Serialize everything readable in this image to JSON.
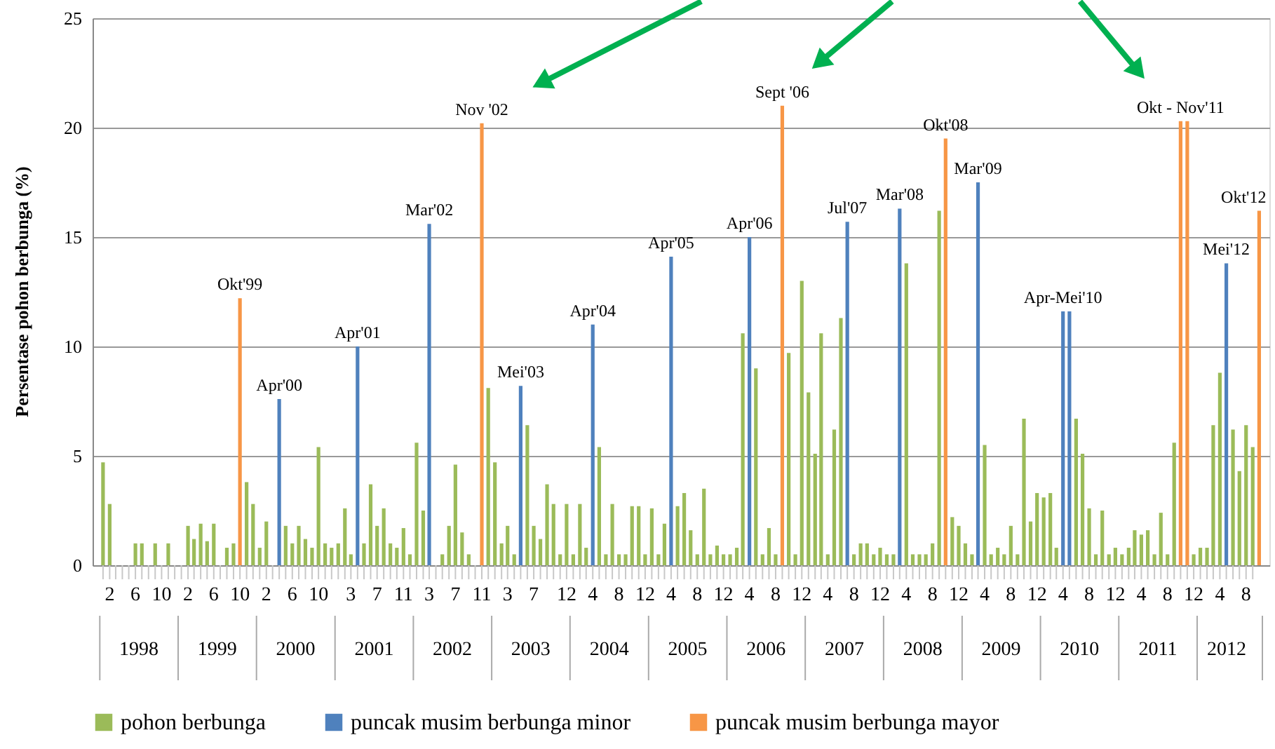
{
  "chart_data": {
    "type": "bar",
    "ylabel": "Persentase pohon berbunga (%)",
    "ylim": [
      0,
      25
    ],
    "yticks": [
      0,
      5,
      10,
      15,
      20,
      25
    ],
    "grid": "y",
    "legend": "bottom",
    "xlim": [
      "1997-12-16",
      "2012-10-16"
    ],
    "xticks": [
      {
        "value": "1998-02",
        "label": "2"
      },
      {
        "value": "1998-06",
        "label": "6"
      },
      {
        "value": "1998-10",
        "label": "10"
      },
      {
        "value": "1999-02",
        "label": "2"
      },
      {
        "value": "1999-06",
        "label": "6"
      },
      {
        "value": "1999-10",
        "label": "10"
      },
      {
        "value": "2000-02",
        "label": "2"
      },
      {
        "value": "2000-06",
        "label": "6"
      },
      {
        "value": "2000-10",
        "label": "10"
      },
      {
        "value": "2001-03",
        "label": "3"
      },
      {
        "value": "2001-07",
        "label": "7"
      },
      {
        "value": "2001-11",
        "label": "11"
      },
      {
        "value": "2002-03",
        "label": "3"
      },
      {
        "value": "2002-07",
        "label": "7"
      },
      {
        "value": "2002-11",
        "label": "11"
      },
      {
        "value": "2003-03",
        "label": "3"
      },
      {
        "value": "2003-07",
        "label": "7"
      },
      {
        "value": "2003-12",
        "label": "12"
      },
      {
        "value": "2004-04",
        "label": "4"
      },
      {
        "value": "2004-08",
        "label": "8"
      },
      {
        "value": "2004-12",
        "label": "12"
      },
      {
        "value": "2005-04",
        "label": "4"
      },
      {
        "value": "2005-08",
        "label": "8"
      },
      {
        "value": "2005-12",
        "label": "12"
      },
      {
        "value": "2006-04",
        "label": "4"
      },
      {
        "value": "2006-08",
        "label": "8"
      },
      {
        "value": "2006-12",
        "label": "12"
      },
      {
        "value": "2007-04",
        "label": "4"
      },
      {
        "value": "2007-08",
        "label": "8"
      },
      {
        "value": "2007-12",
        "label": "12"
      },
      {
        "value": "2008-04",
        "label": "4"
      },
      {
        "value": "2008-08",
        "label": "8"
      },
      {
        "value": "2008-12",
        "label": "12"
      },
      {
        "value": "2009-04",
        "label": "4"
      },
      {
        "value": "2009-08",
        "label": "8"
      },
      {
        "value": "2009-12",
        "label": "12"
      },
      {
        "value": "2010-04",
        "label": "4"
      },
      {
        "value": "2010-08",
        "label": "8"
      },
      {
        "value": "2010-12",
        "label": "12"
      },
      {
        "value": "2011-04",
        "label": "4"
      },
      {
        "value": "2011-08",
        "label": "8"
      },
      {
        "value": "2011-12",
        "label": "12"
      },
      {
        "value": "2012-04",
        "label": "4"
      },
      {
        "value": "2012-08",
        "label": "8"
      }
    ],
    "x": [
      "1998-01",
      "1998-02",
      "1998-03",
      "1998-04",
      "1998-05",
      "1998-06",
      "1998-07",
      "1998-08",
      "1998-09",
      "1998-10",
      "1998-11",
      "1998-12",
      "1999-01",
      "1999-02",
      "1999-03",
      "1999-04",
      "1999-05",
      "1999-06",
      "1999-07",
      "1999-08",
      "1999-09",
      "1999-10",
      "1999-11",
      "1999-12",
      "2000-01",
      "2000-02",
      "2000-03",
      "2000-04",
      "2000-05",
      "2000-06",
      "2000-07",
      "2000-08",
      "2000-09",
      "2000-10",
      "2000-11",
      "2000-12",
      "2001-01",
      "2001-02",
      "2001-03",
      "2001-04",
      "2001-05",
      "2001-06",
      "2001-07",
      "2001-08",
      "2001-09",
      "2001-10",
      "2001-11",
      "2001-12",
      "2002-01",
      "2002-02",
      "2002-03",
      "2002-04",
      "2002-05",
      "2002-06",
      "2002-07",
      "2002-08",
      "2002-09",
      "2002-10",
      "2002-11",
      "2002-12",
      "2003-01",
      "2003-02",
      "2003-03",
      "2003-04",
      "2003-05",
      "2003-06",
      "2003-07",
      "2003-08",
      "2003-09",
      "2003-10",
      "2003-11",
      "2003-12",
      "2004-01",
      "2004-02",
      "2004-03",
      "2004-04",
      "2004-05",
      "2004-06",
      "2004-07",
      "2004-08",
      "2004-09",
      "2004-10",
      "2004-11",
      "2004-12",
      "2005-01",
      "2005-02",
      "2005-03",
      "2005-04",
      "2005-05",
      "2005-06",
      "2005-07",
      "2005-08",
      "2005-09",
      "2005-10",
      "2005-11",
      "2005-12",
      "2006-01",
      "2006-02",
      "2006-03",
      "2006-04",
      "2006-05",
      "2006-06",
      "2006-07",
      "2006-08",
      "2006-09",
      "2006-10",
      "2006-11",
      "2006-12",
      "2007-01",
      "2007-02",
      "2007-03",
      "2007-04",
      "2007-05",
      "2007-06",
      "2007-07",
      "2007-08",
      "2007-09",
      "2007-10",
      "2007-11",
      "2007-12",
      "2008-01",
      "2008-02",
      "2008-03",
      "2008-04",
      "2008-05",
      "2008-06",
      "2008-07",
      "2008-08",
      "2008-09",
      "2008-10",
      "2008-11",
      "2008-12",
      "2009-01",
      "2009-02",
      "2009-03",
      "2009-04",
      "2009-05",
      "2009-06",
      "2009-07",
      "2009-08",
      "2009-09",
      "2009-10",
      "2009-11",
      "2009-12",
      "2010-01",
      "2010-02",
      "2010-03",
      "2010-04",
      "2010-05",
      "2010-06",
      "2010-07",
      "2010-08",
      "2010-09",
      "2010-10",
      "2010-11",
      "2010-12",
      "2011-01",
      "2011-02",
      "2011-03",
      "2011-04",
      "2011-05",
      "2011-06",
      "2011-07",
      "2011-08",
      "2011-09",
      "2011-10",
      "2011-11",
      "2011-12",
      "2012-01",
      "2012-02",
      "2012-03",
      "2012-04",
      "2012-05",
      "2012-06",
      "2012-07",
      "2012-08",
      "2012-09"
    ],
    "series": [
      {
        "name": "pohon berbunga",
        "color": "#9bbb59",
        "values": [
          4.7,
          2.8,
          null,
          null,
          null,
          1.0,
          1.0,
          null,
          1.0,
          null,
          1.0,
          null,
          null,
          1.8,
          1.2,
          1.9,
          1.1,
          1.9,
          null,
          0.8,
          1.0,
          null,
          3.8,
          2.8,
          0.8,
          2.0,
          null,
          null,
          1.8,
          1.0,
          1.8,
          1.2,
          0.8,
          5.4,
          1.0,
          0.8,
          1.0,
          2.6,
          0.5,
          null,
          1.0,
          3.7,
          1.8,
          2.6,
          1.0,
          0.8,
          1.7,
          0.5,
          5.6,
          2.5,
          null,
          null,
          0.5,
          1.8,
          4.6,
          1.5,
          0.5,
          null,
          null,
          8.1,
          4.7,
          1.0,
          1.8,
          0.5,
          null,
          6.4,
          1.8,
          1.2,
          3.7,
          2.8,
          0.5,
          2.8,
          0.5,
          2.8,
          0.8,
          null,
          5.4,
          0.5,
          2.8,
          0.5,
          0.5,
          2.7,
          2.7,
          0.5,
          2.6,
          0.5,
          1.9,
          null,
          2.7,
          3.3,
          1.6,
          0.5,
          3.5,
          0.5,
          0.9,
          0.5,
          0.5,
          0.8,
          10.6,
          null,
          9.0,
          0.5,
          1.7,
          0.5,
          null,
          9.7,
          0.5,
          13.0,
          7.9,
          5.1,
          10.6,
          0.5,
          6.2,
          11.3,
          null,
          0.5,
          1.0,
          1.0,
          0.5,
          0.8,
          0.5,
          0.5,
          null,
          13.8,
          0.5,
          0.5,
          0.5,
          1.0,
          16.2,
          null,
          2.2,
          1.8,
          1.0,
          0.5,
          null,
          5.5,
          0.5,
          0.8,
          0.5,
          1.8,
          0.5,
          6.7,
          2.0,
          3.3,
          3.1,
          3.3,
          0.8,
          null,
          null,
          6.7,
          5.1,
          2.6,
          0.5,
          2.5,
          0.5,
          0.8,
          0.5,
          0.8,
          1.6,
          1.4,
          1.6,
          0.5,
          2.4,
          0.5,
          5.6,
          null,
          null,
          0.5,
          0.8,
          0.8,
          6.4,
          8.8,
          null,
          6.2,
          4.3,
          6.4,
          5.4
        ]
      },
      {
        "name": "puncak musim berbunga minor",
        "color": "#4f81bd",
        "x": [
          "2000-04",
          "2001-04",
          "2002-03",
          "2003-05",
          "2004-04",
          "2005-04",
          "2006-04",
          "2007-07",
          "2008-03",
          "2009-03",
          "2010-04",
          "2010-05",
          "2012-05"
        ],
        "values": [
          7.6,
          10.0,
          15.6,
          8.2,
          11.0,
          14.1,
          15.0,
          15.7,
          16.3,
          17.5,
          11.6,
          11.6,
          13.8
        ]
      },
      {
        "name": "puncak musim berbunga mayor",
        "color": "#f79646",
        "x": [
          "1999-10",
          "2002-11",
          "2006-09",
          "2008-10",
          "2011-10",
          "2011-11",
          "2012-10"
        ],
        "values": [
          12.2,
          20.2,
          21.0,
          19.5,
          20.3,
          20.3,
          16.2
        ]
      }
    ],
    "annotations": [
      {
        "text": "Okt'99",
        "x": "1999-10",
        "y": 12.2
      },
      {
        "text": "Apr'00",
        "x": "2000-04",
        "y": 7.6
      },
      {
        "text": "Apr'01",
        "x": "2001-04",
        "y": 10.0
      },
      {
        "text": "Mar'02",
        "x": "2002-03",
        "y": 15.6
      },
      {
        "text": "Nov '02",
        "x": "2002-11",
        "y": 20.2
      },
      {
        "text": "Mei'03",
        "x": "2003-05",
        "y": 8.2
      },
      {
        "text": "Apr'04",
        "x": "2004-04",
        "y": 11.0
      },
      {
        "text": "Apr'05",
        "x": "2005-04",
        "y": 14.1
      },
      {
        "text": "Apr'06",
        "x": "2006-04",
        "y": 15.0
      },
      {
        "text": "Sept '06",
        "x": "2006-09",
        "y": 21.0
      },
      {
        "text": "Jul'07",
        "x": "2007-07",
        "y": 15.7
      },
      {
        "text": "Mar'08",
        "x": "2008-03",
        "y": 16.3
      },
      {
        "text": "Okt'08",
        "x": "2008-10",
        "y": 19.5
      },
      {
        "text": "Mar'09",
        "x": "2009-03",
        "y": 17.5
      },
      {
        "text": "Apr-Mei'10",
        "x": "2010-04",
        "y": 11.6
      },
      {
        "text": "Okt - Nov'11",
        "x": "2011-10",
        "y": 20.3
      },
      {
        "text": "Mei'12",
        "x": "2012-05",
        "y": 13.8
      },
      {
        "text": "Okt'12",
        "x": "2012-10",
        "y": 16.2
      },
      "1998",
      "1999",
      "2000",
      "2001",
      "2002",
      "2003",
      "2004",
      "2005",
      "2006",
      "2007",
      "2008",
      "2009",
      "2010",
      "2011",
      "2012"
    ]
  }
}
